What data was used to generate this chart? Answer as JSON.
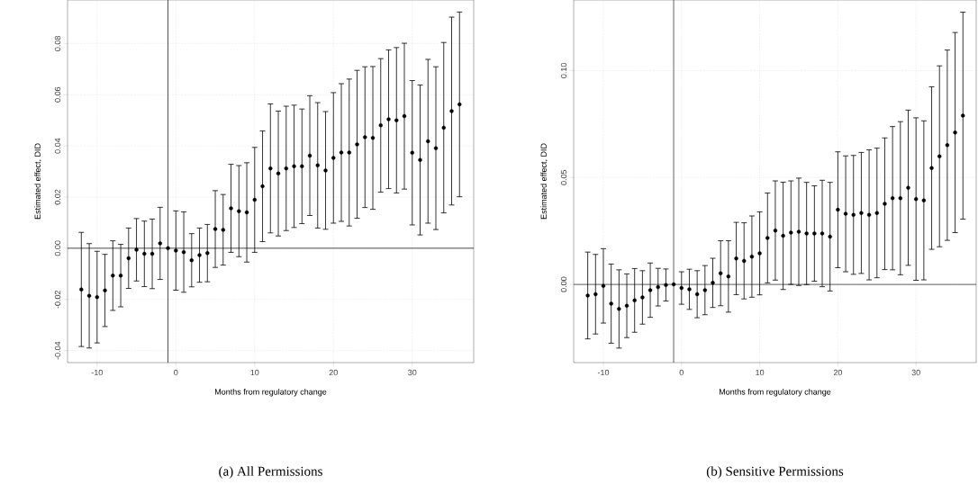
{
  "chart_data": [
    {
      "type": "scatter",
      "xlabel": "Months from regulatory change",
      "ylabel": "Estimated effect, DID",
      "annotations": [
        "(a) All Permissions"
      ],
      "grid": true,
      "x": [
        -12,
        -11,
        -10,
        -9,
        -8,
        -7,
        -6,
        -5,
        -4,
        -3,
        -2,
        -1,
        0,
        1,
        2,
        3,
        4,
        5,
        6,
        7,
        8,
        9,
        10,
        11,
        12,
        13,
        14,
        15,
        16,
        17,
        18,
        19,
        20,
        21,
        22,
        23,
        24,
        25,
        26,
        27,
        28,
        29,
        30,
        31,
        32,
        33,
        34,
        35,
        36
      ],
      "series": [
        {
          "color": "#000000",
          "values": [
            -0.0161,
            -0.0186,
            -0.0191,
            -0.0165,
            -0.0107,
            -0.0107,
            -0.0039,
            -0.0006,
            -0.0022,
            -0.0022,
            0.0019,
            0,
            -0.0009,
            -0.0015,
            -0.0047,
            -0.0027,
            -0.0019,
            0.0075,
            0.0072,
            0.0156,
            0.0145,
            0.014,
            0.0189,
            0.0242,
            0.0312,
            0.0292,
            0.0312,
            0.032,
            0.032,
            0.0362,
            0.0324,
            0.0304,
            0.0353,
            0.0374,
            0.0374,
            0.0406,
            0.0434,
            0.0431,
            0.048,
            0.0504,
            0.05,
            0.0516,
            0.0373,
            0.0345,
            0.0418,
            0.0391,
            0.0471,
            0.0536,
            0.0562
          ],
          "errors": [
            0.0223,
            0.0204,
            0.0179,
            0.0141,
            0.0136,
            0.0122,
            0.0118,
            0.0122,
            0.0128,
            0.0136,
            0.0141,
            null,
            0.0155,
            0.0157,
            0.0104,
            0.0106,
            0.0112,
            0.015,
            0.0138,
            0.0172,
            0.0178,
            0.0194,
            0.0205,
            0.0216,
            0.0252,
            0.0244,
            0.0243,
            0.0239,
            0.0224,
            0.0234,
            0.0245,
            0.023,
            0.0255,
            0.0269,
            0.0287,
            0.0289,
            0.0275,
            0.0279,
            0.0261,
            0.0271,
            0.0284,
            0.0285,
            0.0282,
            0.0293,
            0.032,
            0.0318,
            0.0333,
            0.0367,
            0.0361
          ]
        }
      ],
      "xlim": [
        -13.75,
        37.8
      ],
      "ylim": [
        -0.0447,
        0.097
      ],
      "xticks": [
        -10,
        0,
        10,
        20,
        30
      ],
      "yticks": [
        {
          "value": -0.04,
          "label": "-0.04"
        },
        {
          "value": -0.02,
          "label": "-0.02"
        },
        {
          "value": 0,
          "label": "0.00"
        },
        {
          "value": 0.02,
          "label": "0.02"
        },
        {
          "value": 0.04,
          "label": "0.04"
        },
        {
          "value": 0.06,
          "label": "0.06"
        },
        {
          "value": 0.08,
          "label": "0.08"
        }
      ],
      "ref_lines": [
        {
          "axis": "y",
          "value": 0,
          "color": "#000000"
        },
        {
          "axis": "x",
          "value": -1,
          "color": "#000000"
        }
      ]
    },
    {
      "type": "scatter",
      "xlabel": "Months from regulatory change",
      "ylabel": "Estimated effect, DID",
      "annotations": [
        "(b) Sensitive Permissions"
      ],
      "grid": true,
      "x": [
        -12,
        -11,
        -10,
        -9,
        -8,
        -7,
        -6,
        -5,
        -4,
        -3,
        -2,
        -1,
        0,
        1,
        2,
        3,
        4,
        5,
        6,
        7,
        8,
        9,
        10,
        11,
        12,
        13,
        14,
        15,
        16,
        17,
        18,
        19,
        20,
        21,
        22,
        23,
        24,
        25,
        26,
        27,
        28,
        29,
        30,
        31,
        32,
        33,
        34,
        35,
        36
      ],
      "series": [
        {
          "color": "#000000",
          "values": [
            -0.0052,
            -0.0046,
            -0.0007,
            -0.009,
            -0.0115,
            -0.01,
            -0.0075,
            -0.0061,
            -0.0027,
            -0.0013,
            -0.0003,
            0,
            -0.0017,
            -0.0023,
            -0.0046,
            -0.0027,
            0.0007,
            0.0052,
            0.0037,
            0.0121,
            0.011,
            0.013,
            0.0145,
            0.0217,
            0.0252,
            0.0227,
            0.0242,
            0.0246,
            0.0238,
            0.0238,
            0.0238,
            0.0223,
            0.0349,
            0.033,
            0.0325,
            0.0334,
            0.0325,
            0.0334,
            0.0377,
            0.0403,
            0.0403,
            0.0452,
            0.0399,
            0.0393,
            0.0544,
            0.0599,
            0.0651,
            0.071,
            0.0789
          ],
          "errors": [
            0.0203,
            0.0186,
            0.0174,
            0.0185,
            0.0183,
            0.0149,
            0.0149,
            0.0125,
            0.0127,
            0.0088,
            0.0075,
            null,
            0.0076,
            0.0094,
            0.011,
            0.0115,
            0.0115,
            0.0152,
            0.0167,
            0.0169,
            0.0178,
            0.019,
            0.0194,
            0.021,
            0.0232,
            0.0251,
            0.0242,
            0.0251,
            0.0239,
            0.0223,
            0.0249,
            0.0254,
            0.0271,
            0.0271,
            0.0278,
            0.0283,
            0.0304,
            0.0303,
            0.0308,
            0.0335,
            0.0358,
            0.0363,
            0.038,
            0.0372,
            0.038,
            0.0423,
            0.0445,
            0.0468,
            0.0484
          ]
        }
      ],
      "xlim": [
        -13.8,
        37.7
      ],
      "ylim": [
        -0.0366,
        0.133
      ],
      "xticks": [
        -10,
        0,
        10,
        20,
        30
      ],
      "yticks": [
        {
          "value": 0,
          "label": "0.00"
        },
        {
          "value": 0.05,
          "label": "0.05"
        },
        {
          "value": 0.1,
          "label": "0.10"
        }
      ],
      "ref_lines": [
        {
          "axis": "y",
          "value": 0,
          "color": "#000000"
        },
        {
          "axis": "x",
          "value": -1,
          "color": "#000000"
        }
      ]
    }
  ]
}
